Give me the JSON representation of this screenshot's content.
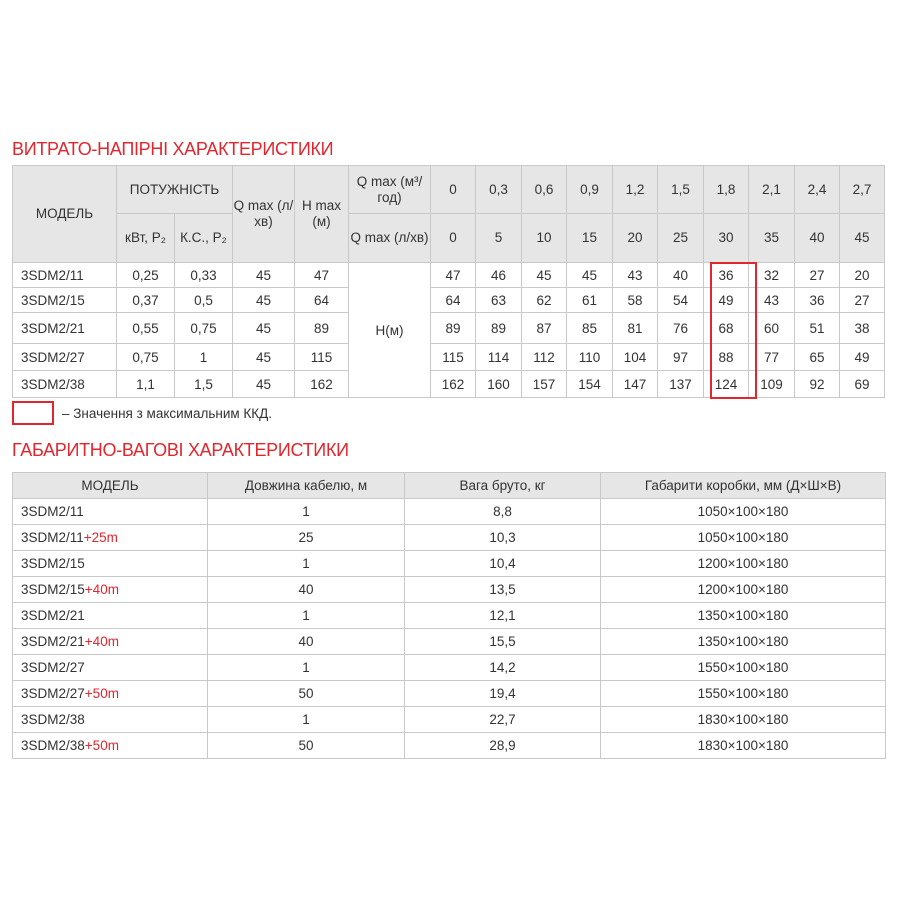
{
  "section1": {
    "title": "ВИТРАТО-НАПІРНІ ХАРАКТЕРИСТИКИ",
    "headers": {
      "model": "МОДЕЛЬ",
      "power": "ПОТУЖНІСТЬ",
      "kw": "кВт, P₂",
      "hp": "К.С., P₂",
      "qmax": "Q max (л/хв)",
      "hmax": "H max (м)",
      "qmax_m3": "Q max (м³/год)",
      "qmax_lmin": "Q max (л/хв)",
      "hm": "H(м)"
    },
    "flow_m3": [
      "0",
      "0,3",
      "0,6",
      "0,9",
      "1,2",
      "1,5",
      "1,8",
      "2,1",
      "2,4",
      "2,7"
    ],
    "flow_lmin": [
      "0",
      "5",
      "10",
      "15",
      "20",
      "25",
      "30",
      "35",
      "40",
      "45"
    ],
    "rows": [
      {
        "model": "3SDM2/11",
        "kw": "0,25",
        "hp": "0,33",
        "q": "45",
        "h": "47",
        "heads": [
          "47",
          "46",
          "45",
          "45",
          "43",
          "40",
          "36",
          "32",
          "27",
          "20"
        ]
      },
      {
        "model": "3SDM2/15",
        "kw": "0,37",
        "hp": "0,5",
        "q": "45",
        "h": "64",
        "heads": [
          "64",
          "63",
          "62",
          "61",
          "58",
          "54",
          "49",
          "43",
          "36",
          "27"
        ]
      },
      {
        "model": "3SDM2/21",
        "kw": "0,55",
        "hp": "0,75",
        "q": "45",
        "h": "89",
        "heads": [
          "89",
          "89",
          "87",
          "85",
          "81",
          "76",
          "68",
          "60",
          "51",
          "38"
        ]
      },
      {
        "model": "3SDM2/27",
        "kw": "0,75",
        "hp": "1",
        "q": "45",
        "h": "115",
        "heads": [
          "115",
          "114",
          "112",
          "110",
          "104",
          "97",
          "88",
          "77",
          "65",
          "49"
        ]
      },
      {
        "model": "3SDM2/38",
        "kw": "1,1",
        "hp": "1,5",
        "q": "45",
        "h": "162",
        "heads": [
          "162",
          "160",
          "157",
          "154",
          "147",
          "137",
          "124",
          "109",
          "92",
          "69"
        ]
      }
    ],
    "legend": "– Значення з максимальним ККД.",
    "highlight_color": "#e2262e"
  },
  "section2": {
    "title": "ГАБАРИТНО-ВАГОВІ ХАРАКТЕРИСТИКИ",
    "headers": [
      "МОДЕЛЬ",
      "Довжина кабелю, м",
      "Вага бруто, кг",
      "Габарити коробки, мм (Д×Ш×В)"
    ],
    "rows": [
      {
        "model": "3SDM2/11",
        "suffix": "",
        "cable": "1",
        "weight": "8,8",
        "box": "1050×100×180"
      },
      {
        "model": "3SDM2/11",
        "suffix": "+25m",
        "cable": "25",
        "weight": "10,3",
        "box": "1050×100×180"
      },
      {
        "model": "3SDM2/15",
        "suffix": "",
        "cable": "1",
        "weight": "10,4",
        "box": "1200×100×180"
      },
      {
        "model": "3SDM2/15",
        "suffix": "+40m",
        "cable": "40",
        "weight": "13,5",
        "box": "1200×100×180"
      },
      {
        "model": "3SDM2/21",
        "suffix": "",
        "cable": "1",
        "weight": "12,1",
        "box": "1350×100×180"
      },
      {
        "model": "3SDM2/21",
        "suffix": "+40m",
        "cable": "40",
        "weight": "15,5",
        "box": "1350×100×180"
      },
      {
        "model": "3SDM2/27",
        "suffix": "",
        "cable": "1",
        "weight": "14,2",
        "box": "1550×100×180"
      },
      {
        "model": "3SDM2/27",
        "suffix": "+50m",
        "cable": "50",
        "weight": "19,4",
        "box": "1550×100×180"
      },
      {
        "model": "3SDM2/38",
        "suffix": "",
        "cable": "1",
        "weight": "22,7",
        "box": "1830×100×180"
      },
      {
        "model": "3SDM2/38",
        "suffix": "+50m",
        "cable": "50",
        "weight": "28,9",
        "box": "1830×100×180"
      }
    ]
  }
}
